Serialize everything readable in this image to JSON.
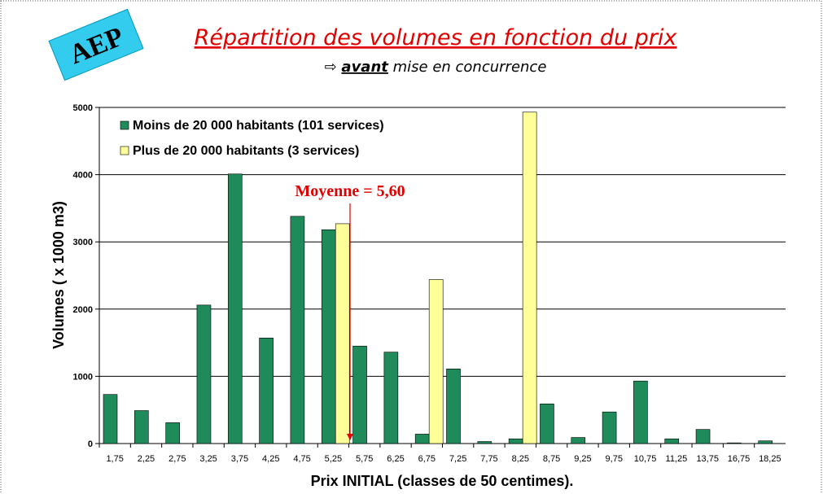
{
  "chart_data": {
    "type": "bar",
    "badge": "AEP",
    "title": "Répartition des volumes en fonction du prix",
    "subtitle": {
      "arrow": "⇨",
      "emphasis": "avant",
      "rest": "mise en concurrence"
    },
    "annotation": "Moyenne = 5,60",
    "x_label": "Prix INITIAL (classes de 50 centimes).",
    "y_label": "Volumes  ( x 1000 m3)",
    "categories": [
      "1,75",
      "2,25",
      "2,75",
      "3,25",
      "3,75",
      "4,25",
      "4,75",
      "5,25",
      "5,75",
      "6,25",
      "6,75",
      "7,25",
      "7,75",
      "8,25",
      "8,75",
      "9,25",
      "9,75",
      "10,75",
      "11,25",
      "13,75",
      "16,75",
      "18,25"
    ],
    "series": [
      {
        "name": "Moins de 20 000 habitants (101 services)",
        "color": "#1f8a5a",
        "values": [
          730,
          490,
          310,
          2060,
          4010,
          1570,
          3380,
          3180,
          1450,
          1360,
          140,
          1110,
          30,
          70,
          590,
          90,
          470,
          930,
          70,
          210,
          10,
          40
        ]
      },
      {
        "name": "Plus de 20 000 habitants (3 services)",
        "color": "#ffff99",
        "values": [
          null,
          null,
          null,
          null,
          null,
          null,
          null,
          3270,
          null,
          null,
          2440,
          null,
          null,
          4930,
          null,
          null,
          null,
          null,
          null,
          null,
          null,
          null
        ]
      }
    ],
    "ylim": [
      0,
      5000
    ],
    "yticks": [
      0,
      1000,
      2000,
      3000,
      4000,
      5000
    ],
    "grid": true,
    "legend": "top-left"
  }
}
